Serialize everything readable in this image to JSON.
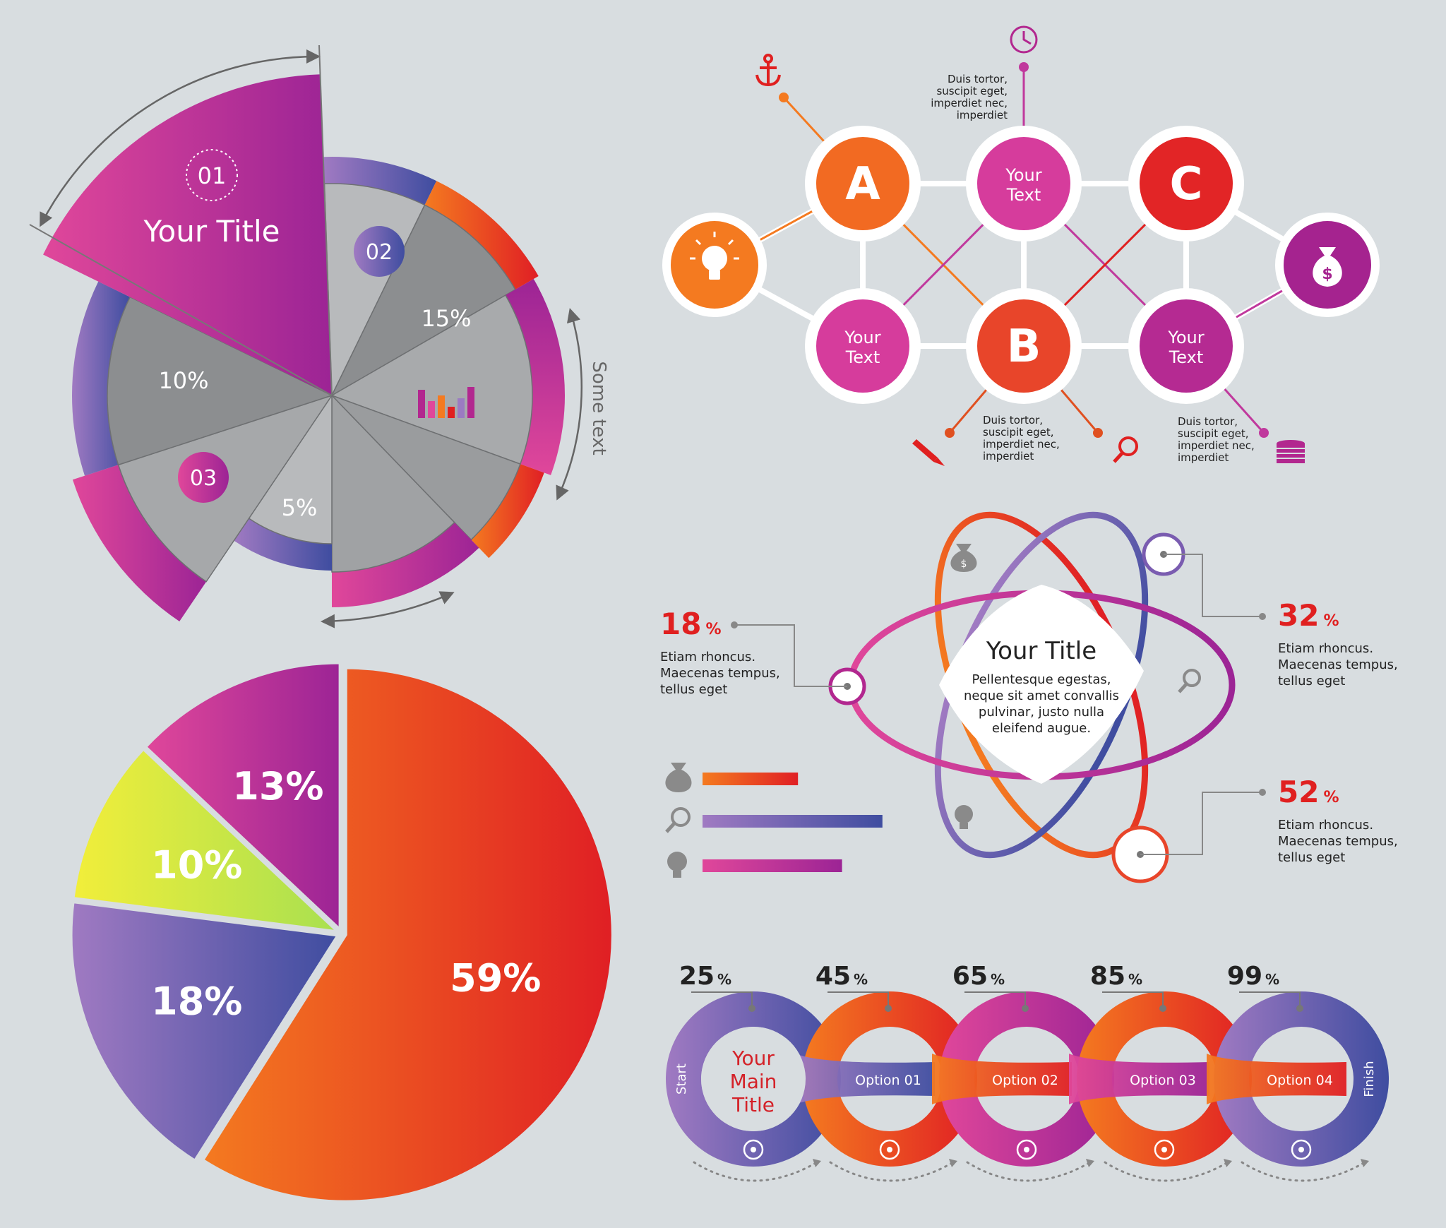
{
  "colors": {
    "background": "#d8dde0",
    "magenta": "#b2278f",
    "pink": "#e0479a",
    "purple": "#4b4fa4",
    "lavender": "#9b7bc2",
    "orange": "#f47a20",
    "red": "#e02020",
    "lime": "#dfee3a",
    "gray_dark": "#8c8d8e",
    "gray_light": "#b5b7b9",
    "text_dark": "#222222"
  },
  "rose": {
    "title": "Your Title",
    "badge_01": "01",
    "badge_02": "02",
    "badge_03": "03",
    "pct_15": "15%",
    "pct_10": "10%",
    "pct_5": "5%",
    "side_text": "Some text",
    "chart_icon": "bar-chart-icon"
  },
  "network": {
    "node_a": "A",
    "node_b": "B",
    "node_c": "C",
    "your_text_1": [
      "Your",
      "Text"
    ],
    "your_text_2": [
      "Your",
      "Text"
    ],
    "your_text_3": [
      "Your",
      "Text"
    ],
    "note_top": [
      "Duis tortor,",
      "suscipit eget,",
      "imperdiet nec,",
      "imperdiet"
    ],
    "note_bottom_1": [
      "Duis tortor,",
      "suscipit eget,",
      "imperdiet nec,",
      "imperdiet"
    ],
    "note_bottom_2": [
      "Duis tortor,",
      "suscipit eget,",
      "imperdiet nec,",
      "imperdiet"
    ],
    "icons": [
      "anchor-icon",
      "clock-icon",
      "lightbulb-icon",
      "money-bag-icon",
      "pencil-icon",
      "magnifier-icon",
      "coins-icon"
    ]
  },
  "atom": {
    "title": "Your Title",
    "body": [
      "Pellentesque egestas,",
      "neque sit amet convallis",
      "pulvinar, justo nulla",
      "eleifend augue."
    ],
    "stat_18": {
      "value": "18",
      "unit": "%",
      "text": [
        "Etiam rhoncus.",
        "Maecenas tempus,",
        "tellus eget"
      ]
    },
    "stat_32": {
      "value": "32",
      "unit": "%",
      "text": [
        "Etiam rhoncus.",
        "Maecenas tempus,",
        "tellus eget"
      ]
    },
    "stat_52": {
      "value": "52",
      "unit": "%",
      "text": [
        "Etiam rhoncus.",
        "Maecenas tempus,",
        "tellus eget"
      ]
    },
    "icons": [
      "money-bag-icon",
      "magnifier-icon",
      "lightbulb-icon"
    ]
  },
  "chart_data": [
    {
      "type": "pie",
      "title": "",
      "series": [
        {
          "label": "59%",
          "value": 59,
          "color": "#e02020"
        },
        {
          "label": "18%",
          "value": 18,
          "color": "#4b4fa4"
        },
        {
          "label": "10%",
          "value": 10,
          "color": "#dfee3a"
        },
        {
          "label": "13%",
          "value": 13,
          "color": "#b2278f"
        }
      ]
    },
    {
      "type": "bar",
      "title": "",
      "categories": [
        "money-bag-icon",
        "magnifier-icon",
        "lightbulb-icon"
      ],
      "values": [
        0.52,
        0.98,
        0.76
      ],
      "colors": [
        "#e02020",
        "#4b4fa4",
        "#b2278f"
      ]
    },
    {
      "type": "bar",
      "title": "",
      "categories": [
        "Start",
        "Option 01",
        "Option 02",
        "Option 03",
        "Option 04"
      ],
      "values": [
        25,
        45,
        65,
        85,
        99
      ],
      "unit": "%",
      "main_title": [
        "Your",
        "Main",
        "Title"
      ],
      "start_label": "Start",
      "finish_label": "Finish",
      "icons": [
        "money-bag-icon",
        "flask-icon",
        "clock-icon",
        "coins-icon",
        "lightbulb-icon"
      ]
    }
  ]
}
